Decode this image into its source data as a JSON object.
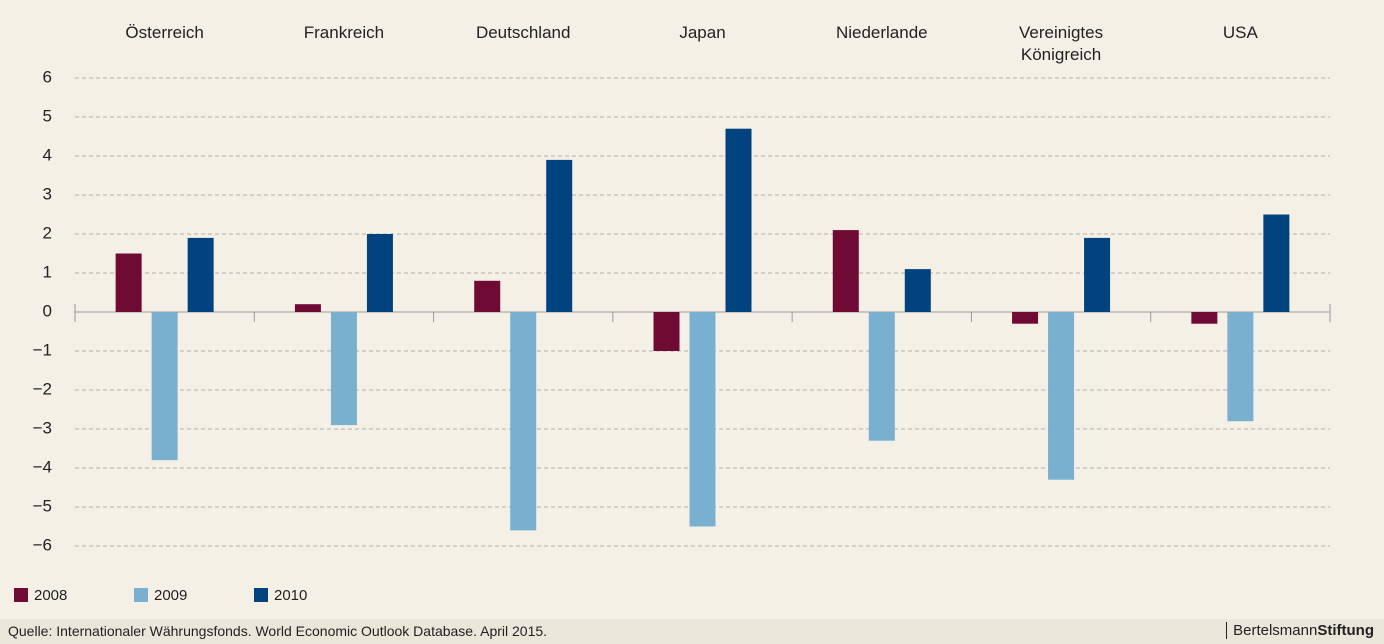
{
  "chart_data": {
    "type": "bar",
    "categories": [
      "Österreich",
      "Frankreich",
      "Deutschland",
      "Japan",
      "Niederlande",
      "Vereinigtes Königreich",
      "USA"
    ],
    "series": [
      {
        "name": "2008",
        "color": "#6e0a33",
        "values": [
          1.5,
          0.2,
          0.8,
          -1.0,
          2.1,
          -0.3,
          -0.3
        ]
      },
      {
        "name": "2009",
        "color": "#7ab0cf",
        "values": [
          -3.8,
          -2.9,
          -5.6,
          -5.5,
          -3.3,
          -4.3,
          -2.8
        ]
      },
      {
        "name": "2010",
        "color": "#00437e",
        "values": [
          1.9,
          2.0,
          3.9,
          4.7,
          1.1,
          1.9,
          2.5
        ]
      }
    ],
    "ylim": [
      -6,
      6
    ],
    "yticks": [
      {
        "value": -6,
        "label": "−6"
      },
      {
        "value": -5,
        "label": "−5"
      },
      {
        "value": -4,
        "label": "−4"
      },
      {
        "value": -3,
        "label": "−3"
      },
      {
        "value": -2,
        "label": "−2"
      },
      {
        "value": -1,
        "label": "−1"
      },
      0,
      1,
      2,
      3,
      4,
      5,
      6
    ],
    "grid": true,
    "legend": "bottom-left"
  },
  "footer": {
    "source": "Quelle: Internationaler Währungsfonds. World Economic Outlook Database. April 2015.",
    "brand": "Bertelsmann",
    "brand_bold": "Stiftung"
  }
}
